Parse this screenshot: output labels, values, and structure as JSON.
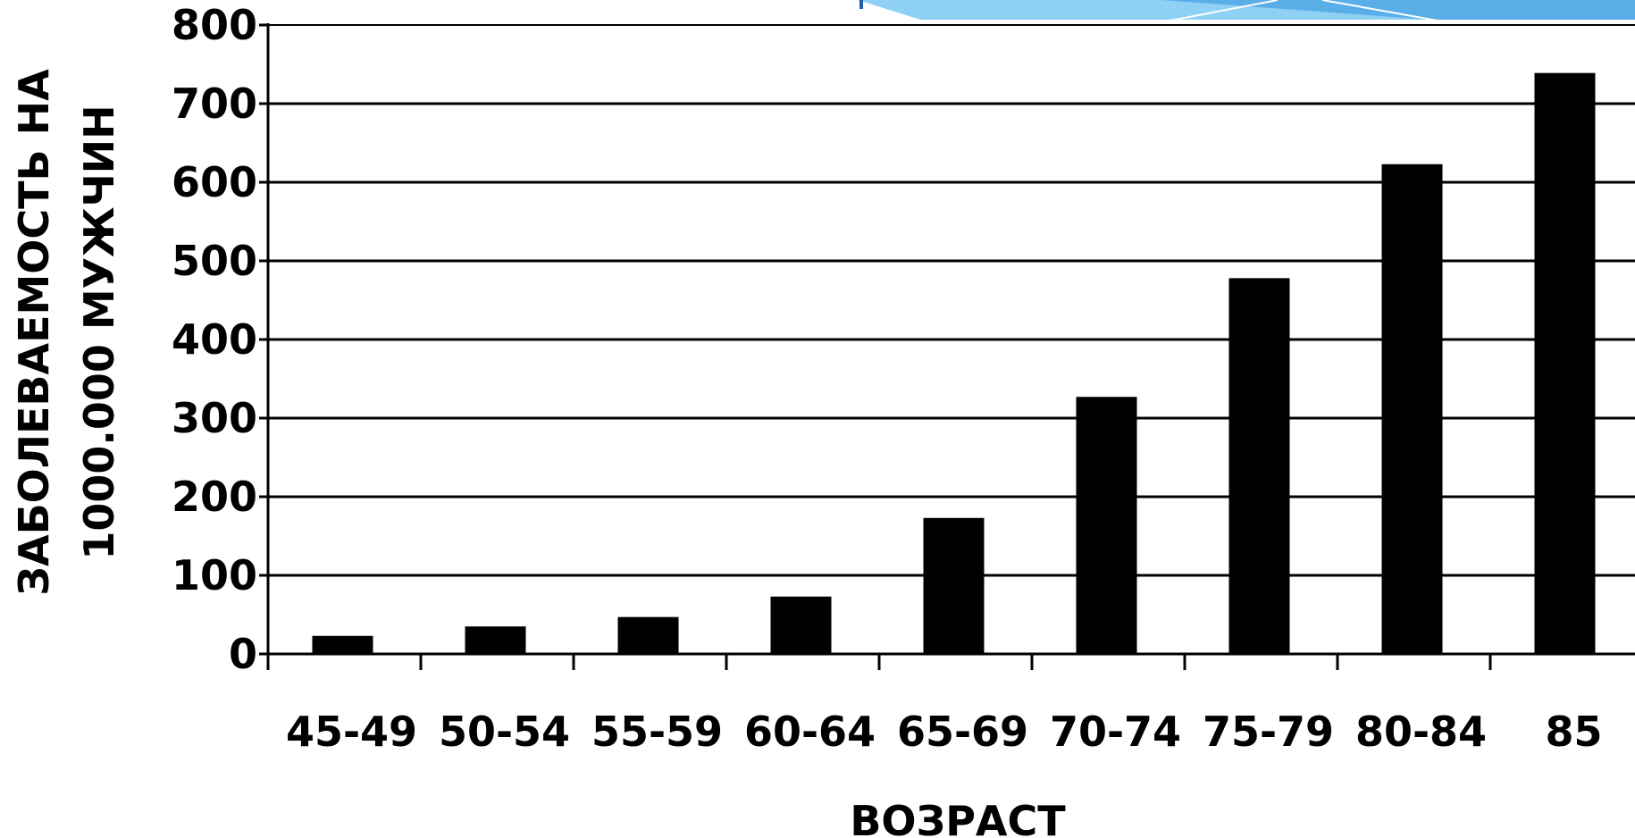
{
  "chart_data": {
    "type": "bar",
    "title": "",
    "xlabel": "ВОЗРАСТ",
    "ylabel_lines": [
      "ЗАБОЛЕВАЕМОСТЬ НА",
      "1000.000 МУЖЧИН"
    ],
    "categories": [
      "45-49",
      "50-54",
      "55-59",
      "60-64",
      "65-69",
      "70-74",
      "75-79",
      "80-84",
      "85"
    ],
    "values": [
      23,
      35,
      47,
      73,
      173,
      327,
      478,
      623,
      739
    ],
    "ylim": [
      0,
      800
    ],
    "yticks": [
      "0",
      "100",
      "200",
      "300",
      "400",
      "500",
      "600",
      "700",
      "800"
    ],
    "grid": true,
    "bar_color": "#000000",
    "grid_color": "#000000"
  },
  "decor": {
    "banner_color": "#8fd0f5",
    "banner_dark": "#5aaee8",
    "title_fragment_color": "#1f5fa8"
  }
}
